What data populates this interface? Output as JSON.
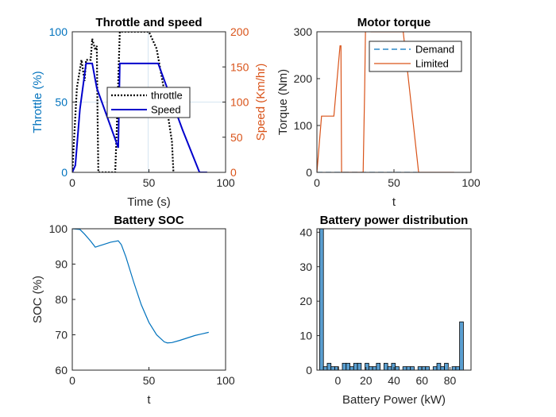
{
  "colors": {
    "throttle_axis": "#0072BD",
    "speed_axis": "#D95319",
    "speed_line": "#0000CC",
    "demand": "#0072BD",
    "limited": "#D95319",
    "soc_line": "#0072BD",
    "hist_fill": "#5A9FD1",
    "axis_text": "#262626",
    "grid": "#D6E6F2"
  },
  "chart_data": [
    {
      "type": "line",
      "title": "Throttle and speed",
      "xlabel": "Time (s)",
      "ylabel_left": "Throttle (%)",
      "ylabel_right": "Speed (Km/hr)",
      "xlim": [
        0,
        100
      ],
      "ylim_left": [
        0,
        100
      ],
      "ylim_right": [
        0,
        200
      ],
      "xticks": [
        "0",
        "50",
        "100"
      ],
      "yticks_left": [
        "0",
        "50",
        "100"
      ],
      "yticks_right": [
        "0",
        "50",
        "100",
        "150",
        "200"
      ],
      "legend": {
        "placement": "center-right",
        "entries": [
          "throttle",
          "Speed"
        ]
      },
      "grid": false,
      "series": [
        {
          "name": "throttle",
          "axis": "left",
          "style": "dotted",
          "x": [
            0,
            3,
            6,
            8,
            9,
            12,
            13,
            15,
            16,
            16.5,
            17,
            28,
            29,
            31,
            31.5,
            33,
            45,
            50,
            55,
            60,
            65,
            66
          ],
          "y": [
            0,
            60,
            80,
            65,
            80,
            80,
            95,
            87,
            90,
            40,
            0,
            0,
            30,
            100,
            100,
            100,
            100,
            100,
            88,
            58,
            22,
            0
          ]
        },
        {
          "name": "Speed",
          "axis": "right",
          "style": "solid",
          "x": [
            0,
            2,
            5,
            9,
            13,
            16,
            30,
            31,
            33,
            50,
            56,
            72,
            83,
            85,
            88
          ],
          "y": [
            0,
            10,
            90,
            155,
            155,
            120,
            35,
            155,
            155,
            155,
            155,
            60,
            0,
            0,
            0
          ]
        }
      ]
    },
    {
      "type": "line",
      "title": "Motor torque",
      "xlabel": "t",
      "ylabel": "Torque (Nm)",
      "xlim": [
        0,
        100
      ],
      "ylim": [
        0,
        300
      ],
      "xticks": [
        "0",
        "50",
        "100"
      ],
      "yticks": [
        "0",
        "100",
        "200",
        "300"
      ],
      "legend": {
        "placement": "top-right",
        "entries": [
          "Demand",
          "Limited"
        ]
      },
      "grid": false,
      "series": [
        {
          "name": "Demand",
          "style": "dashed",
          "x": [
            0,
            10,
            20,
            30,
            40,
            50,
            60,
            65
          ],
          "y": [
            0,
            0,
            0,
            0,
            0,
            0,
            0,
            0
          ]
        },
        {
          "name": "Limited",
          "style": "solid",
          "x": [
            0,
            3,
            4,
            10,
            11,
            15,
            15.6,
            16,
            29,
            30,
            31,
            31.5,
            33,
            35,
            45,
            50,
            56,
            66,
            67,
            89
          ],
          "y": [
            0,
            120,
            120,
            120,
            120,
            270,
            270,
            0,
            0,
            0,
            180,
            300,
            320,
            300,
            300,
            300,
            300,
            0,
            0,
            0
          ]
        }
      ]
    },
    {
      "type": "line",
      "title": "Battery SOC",
      "xlabel": "t",
      "ylabel": "SOC (%)",
      "xlim": [
        0,
        100
      ],
      "ylim": [
        60,
        100
      ],
      "xticks": [
        "0",
        "50",
        "100"
      ],
      "yticks": [
        "60",
        "70",
        "80",
        "90",
        "100"
      ],
      "grid": false,
      "series": [
        {
          "name": "",
          "x": [
            0,
            5,
            8,
            12,
            15,
            20,
            25,
            30,
            32,
            35,
            40,
            45,
            50,
            55,
            60,
            62,
            65,
            70,
            75,
            80,
            85,
            89
          ],
          "y": [
            100,
            99.8,
            98.5,
            96.5,
            94.8,
            95.5,
            96.2,
            96.6,
            95.5,
            92,
            85,
            78.5,
            73.5,
            70,
            68,
            67.7,
            67.8,
            68.4,
            69.1,
            69.8,
            70.3,
            70.7
          ]
        }
      ]
    },
    {
      "type": "bar",
      "title": "Battery power distribution",
      "xlabel": "Battery Power (kW)",
      "ylabel": "",
      "xlim": [
        -15,
        95
      ],
      "ylim": [
        0,
        41
      ],
      "xticks": [
        "0",
        "20",
        "40",
        "60",
        "80"
      ],
      "yticks": [
        "0",
        "10",
        "20",
        "30",
        "40"
      ],
      "bin_width": 2.7,
      "grid": false,
      "bin_centers": [
        -11.7,
        -9.0,
        -6.3,
        -3.6,
        -0.9,
        1.8,
        4.5,
        7.2,
        9.9,
        12.6,
        15.3,
        18.0,
        20.7,
        23.4,
        26.1,
        28.8,
        31.5,
        34.2,
        36.9,
        39.6,
        42.3,
        45.0,
        47.7,
        50.4,
        53.1,
        55.8,
        58.5,
        61.2,
        63.9,
        66.6,
        69.3,
        72.0,
        74.7,
        77.4,
        80.1,
        82.8,
        85.5,
        88.2
      ],
      "values": [
        41,
        1,
        2,
        1,
        1,
        0,
        2,
        2,
        1,
        2,
        2,
        0,
        2,
        1,
        1,
        2,
        0,
        2,
        1,
        2,
        1,
        0,
        1,
        1,
        1,
        0,
        1,
        1,
        1,
        0,
        1,
        2,
        1,
        2,
        0,
        1,
        1,
        14
      ]
    }
  ]
}
